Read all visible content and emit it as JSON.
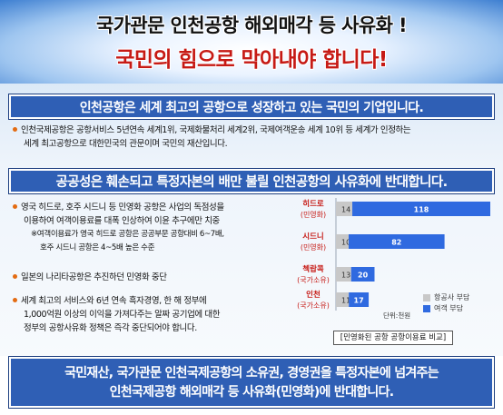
{
  "header": {
    "line1": "국가관문 인천공항 해외매각 등 사유화 !",
    "line2": "국민의 힘으로 막아내야 합니다!"
  },
  "section1": {
    "title": "인천공항은 세계 최고의 공항으로 성장하고 있는 국민의 기업입니다.",
    "bullet_line1": "인천국제공항은 공항서비스 5년연속 세계1위, 국제화물처리 세계2위, 국제여객운송 세계 10위 등 세계가 인정하는",
    "bullet_line2": "세계 최고공항으로 대한민국의 관문이며 국민의 재산입니다."
  },
  "section2": {
    "title": "공공성은 훼손되고 특정자본의 배만 불릴 인천공항의 사유화에 반대합니다.",
    "bullet1_line1": "영국 히드로, 호주 시드니 등 민영화 공항은 사업의 독점성을",
    "bullet1_line2": "이용하여 여객이용료를 대폭 인상하여 이윤 추구에만 치중",
    "bullet1_note1": "※여객이용료가 영국 히드로 공항은 공공부문 공항대비 6~7배,",
    "bullet1_note2": "호주 시드니 공항은 4~5배 높은 수준",
    "bullet2": "일본의 나리타공항은 추진하던 민영화 중단",
    "bullet3_line1": "세계 최고의 서비스와 6년 연속 흑자경영, 한 해 정부에",
    "bullet3_line2": "1,000억원 이상의 이익을 가져다주는 알짜 공기업에 대한",
    "bullet3_line3": "정부의 공항사유화 정책은 즉각 중단되어야 합니다."
  },
  "chart_data": {
    "type": "bar",
    "stacked": true,
    "orientation": "horizontal",
    "categories": [
      {
        "name": "히드로",
        "sub": "(민영화)"
      },
      {
        "name": "시드니",
        "sub": "(민영화)"
      },
      {
        "name": "첵랍콕",
        "sub": "(국가소유)"
      },
      {
        "name": "인천",
        "sub": "(국가소유)"
      }
    ],
    "series": [
      {
        "name": "항공사 부담",
        "values": [
          14,
          10,
          13,
          11
        ],
        "color": "#c8c8c8"
      },
      {
        "name": "여객 부담",
        "values": [
          118,
          82,
          20,
          17
        ],
        "color": "#2f6ae0"
      }
    ],
    "unit": "단위:천원",
    "caption": "[민영화된 공항 공항이용료 비교]"
  },
  "footer": {
    "line1": "국민재산, 국가관문 인천국제공항의 소유권, 경영권을 특정자본에 넘겨주는",
    "line2": "인천국제공항 해외매각 등 사유화(민영화)에 반대합니다."
  }
}
